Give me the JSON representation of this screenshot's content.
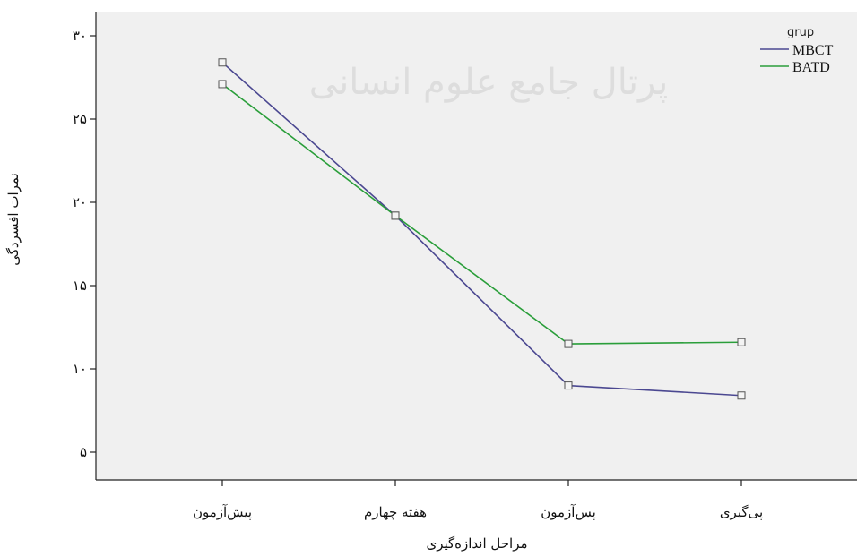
{
  "chart_data": {
    "type": "line",
    "categories": [
      "پیش‌آزمون",
      "هفته چهارم",
      "پس‌آزمون",
      "پی‌گیری"
    ],
    "xlabel": "مراحل اندازه‌گیری",
    "ylabel": "نمرات افسردگی",
    "ylim": [
      4,
      31
    ],
    "yticks": [
      5,
      10,
      15,
      20,
      25,
      30
    ],
    "ytick_labels": [
      "۵",
      "۱۰",
      "۱۵",
      "۲۰",
      "۲۵",
      "۳۰"
    ],
    "grid": false,
    "legend": {
      "title": "grup",
      "placement": "top-right"
    },
    "series": [
      {
        "name": "MBCT",
        "color": "#4b4891",
        "values": [
          28.4,
          19.2,
          9.0,
          8.4
        ]
      },
      {
        "name": "BATD",
        "color": "#2a9e3a",
        "values": [
          27.1,
          19.2,
          11.5,
          11.6
        ]
      }
    ],
    "marker": "open-square",
    "watermark": "پرتال جامع علوم انسانی"
  }
}
